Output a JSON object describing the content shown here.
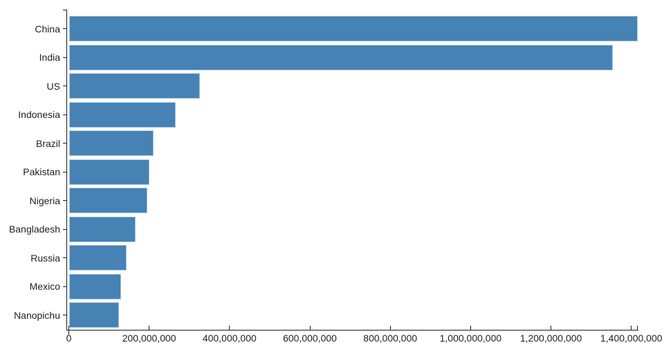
{
  "chart_data": {
    "type": "bar",
    "orientation": "horizontal",
    "title": "",
    "categories": [
      "China",
      "India",
      "US",
      "Indonesia",
      "Brazil",
      "Pakistan",
      "Nigeria",
      "Bangladesh",
      "Russia",
      "Mexico",
      "Nanopichu"
    ],
    "values": [
      1415045928,
      1354051854,
      326766748,
      266794980,
      210867954,
      200813818,
      195875237,
      166368149,
      143964709,
      130759074,
      125000000
    ],
    "x_ticks": [
      0,
      200000000,
      400000000,
      600000000,
      800000000,
      1000000000,
      1200000000,
      1400000000
    ],
    "x_tick_labels": [
      "0",
      "200,000,000",
      "400,000,000",
      "600,000,000",
      "800,000,000",
      "1,000,000,000",
      "1,200,000,000",
      "1,400,000,000"
    ],
    "xlim": [
      0,
      1415045928
    ],
    "grid": false,
    "legend": null,
    "bar_color": "#4682b4",
    "bar_edge_color": "#a9c7dd",
    "axis_color": "#1a1a1a",
    "text_color": "#212121"
  }
}
